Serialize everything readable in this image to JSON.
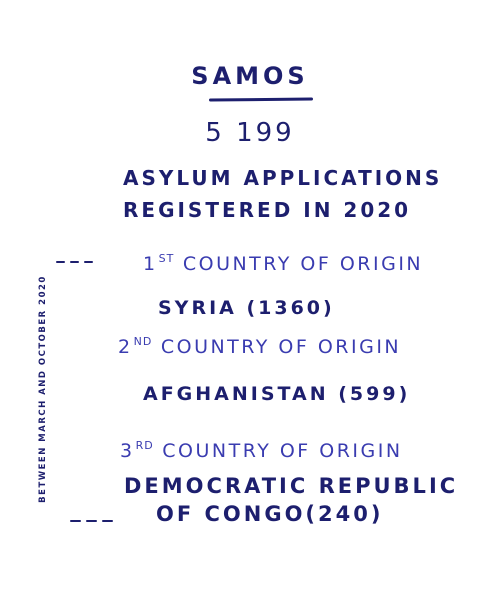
{
  "title": "SAMOS",
  "total": "5 199",
  "subtitle": {
    "line1": "ASYLUM APPLICATIONS",
    "line2": "REGISTERED IN 2020"
  },
  "period_label": "BETWEEN MARCH AND OCTOBER 2020",
  "origins": [
    {
      "rank_num": "1",
      "rank_suffix": "ST",
      "rank_text": "COUNTRY OF ORIGIN",
      "country": "SYRIA (1360)"
    },
    {
      "rank_num": "2",
      "rank_suffix": "ND",
      "rank_text": "COUNTRY OF ORIGIN",
      "country": "AFGHANISTAN (599)"
    },
    {
      "rank_num": "3",
      "rank_suffix": "RD",
      "rank_text": "COUNTRY OF ORIGIN",
      "country_line1": "DEMOCRATIC REPUBLIC",
      "country_line2": "OF CONGO(240)"
    }
  ],
  "colors": {
    "ink_dark": "#1d1f6e",
    "ink_light": "#3a3cb0",
    "background": "#ffffff"
  }
}
